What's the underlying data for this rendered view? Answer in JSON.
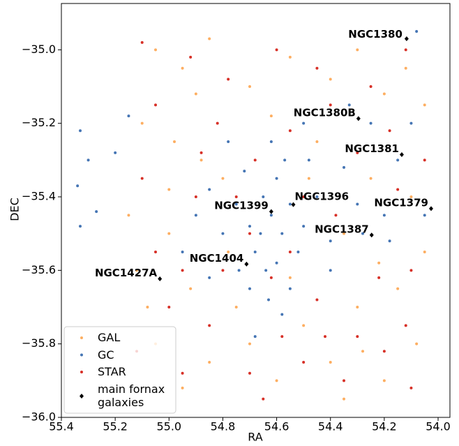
{
  "chart_data": {
    "type": "scatter",
    "xlabel": "RA",
    "ylabel": "DEC",
    "xlim": [
      55.4,
      53.956
    ],
    "ylim": [
      -36.0,
      -34.874
    ],
    "xticks": [
      55.4,
      55.2,
      {
        "value": 55,
        "label": "55.0"
      },
      54.8,
      54.6,
      54.4,
      54.2,
      {
        "value": 54,
        "label": "54.0"
      }
    ],
    "yticks": [
      {
        "value": -35,
        "label": "−35.0"
      },
      {
        "value": -35.2,
        "label": "−35.2"
      },
      {
        "value": -35.4,
        "label": "−35.4"
      },
      {
        "value": -35.6,
        "label": "−35.6"
      },
      {
        "value": -35.8,
        "label": "−35.8"
      },
      {
        "value": -36,
        "label": "−36.0"
      }
    ],
    "legend": "lower left",
    "series": [
      {
        "name": "GAL",
        "color": "#fdae61",
        "marker": "circle",
        "x": [
          55.05,
          54.95,
          54.85,
          54.7,
          54.55,
          54.4,
          54.3,
          54.2,
          54.05,
          55.1,
          54.98,
          54.88,
          54.45,
          54.25,
          54.1,
          55.15,
          55.0,
          54.8,
          54.35,
          54.05,
          55.12,
          54.92,
          54.75,
          54.5,
          54.3,
          54.15,
          55.05,
          54.85,
          54.6,
          54.4,
          54.2,
          54.08,
          54.95,
          54.7,
          54.55,
          54.22,
          55.0,
          54.9,
          54.62,
          54.48,
          54.12,
          54.78,
          54.35,
          55.08,
          54.28
        ],
        "y": [
          -35.0,
          -35.05,
          -34.97,
          -35.1,
          -35.02,
          -35.08,
          -35.0,
          -35.12,
          -35.15,
          -35.2,
          -35.25,
          -35.3,
          -35.25,
          -35.35,
          -35.4,
          -35.45,
          -35.5,
          -35.35,
          -35.5,
          -35.55,
          -35.6,
          -35.65,
          -35.7,
          -35.75,
          -35.7,
          -35.65,
          -35.8,
          -35.85,
          -35.9,
          -35.85,
          -35.9,
          -35.8,
          -35.92,
          -35.8,
          -35.62,
          -35.58,
          -35.38,
          -35.12,
          -35.18,
          -35.35,
          -35.05,
          -35.55,
          -35.95,
          -35.7,
          -35.82
        ]
      },
      {
        "name": "GC",
        "color": "#4575b4",
        "marker": "circle",
        "x": [
          55.33,
          55.3,
          55.34,
          55.27,
          55.33,
          55.2,
          55.15,
          54.62,
          54.65,
          54.58,
          54.7,
          54.55,
          54.6,
          54.68,
          54.52,
          54.75,
          54.64,
          54.57,
          54.72,
          54.5,
          54.66,
          54.6,
          54.8,
          54.45,
          54.62,
          54.7,
          54.55,
          54.58,
          54.85,
          54.4,
          54.63,
          54.74,
          54.48,
          54.9,
          54.35,
          54.3,
          54.28,
          54.2,
          54.15,
          54.1,
          54.08,
          54.25,
          54.33,
          54.4,
          54.95,
          54.78,
          54.18,
          54.05,
          54.5,
          54.68,
          54.85
        ],
        "y": [
          -35.22,
          -35.3,
          -35.37,
          -35.44,
          -35.48,
          -35.28,
          -35.18,
          -35.45,
          -35.4,
          -35.5,
          -35.48,
          -35.42,
          -35.35,
          -35.55,
          -35.55,
          -35.42,
          -35.6,
          -35.3,
          -35.33,
          -35.48,
          -35.5,
          -35.58,
          -35.5,
          -35.4,
          -35.25,
          -35.65,
          -35.65,
          -35.72,
          -35.38,
          -35.52,
          -35.68,
          -35.6,
          -35.3,
          -35.45,
          -35.32,
          -35.42,
          -35.5,
          -35.45,
          -35.3,
          -35.2,
          -34.95,
          -35.2,
          -35.15,
          -35.6,
          -35.55,
          -35.25,
          -35.52,
          -35.45,
          -35.2,
          -35.78,
          -35.62
        ]
      },
      {
        "name": "STAR",
        "color": "#d73027",
        "marker": "circle",
        "x": [
          55.1,
          54.92,
          54.78,
          54.6,
          54.45,
          54.25,
          54.12,
          55.05,
          54.82,
          54.55,
          54.3,
          54.15,
          55.1,
          54.9,
          54.7,
          54.55,
          54.38,
          54.22,
          54.1,
          55.05,
          54.8,
          54.62,
          54.45,
          54.3,
          54.12,
          55.0,
          54.85,
          54.7,
          54.5,
          54.35,
          54.1,
          54.95,
          54.65,
          54.42,
          54.2,
          54.88,
          54.68,
          54.5,
          54.58,
          54.75,
          55.12,
          54.18,
          54.4,
          54.95,
          54.05
        ],
        "y": [
          -34.98,
          -35.02,
          -35.08,
          -35.0,
          -35.05,
          -35.1,
          -35.0,
          -35.15,
          -35.2,
          -35.22,
          -35.28,
          -35.38,
          -35.35,
          -35.4,
          -35.5,
          -35.55,
          -35.45,
          -35.62,
          -35.6,
          -35.55,
          -35.6,
          -35.62,
          -35.68,
          -35.78,
          -35.75,
          -35.7,
          -35.75,
          -35.88,
          -35.85,
          -35.9,
          -35.92,
          -35.88,
          -35.95,
          -35.78,
          -35.82,
          -35.28,
          -35.3,
          -35.4,
          -35.78,
          -35.4,
          -35.82,
          -35.22,
          -35.15,
          -35.6,
          -35.3
        ]
      },
      {
        "name": "main fornax galaxies",
        "color": "#000000",
        "marker": "diamond",
        "x": [
          54.117,
          54.296,
          54.135,
          54.026,
          54.538,
          54.62,
          54.247,
          54.712,
          55.034
        ],
        "y": [
          -34.97,
          -35.187,
          -35.285,
          -35.432,
          -35.421,
          -35.44,
          -35.504,
          -35.583,
          -35.623
        ],
        "labels": [
          "NGC1380",
          "NGC1380B",
          "NGC1381",
          "NGC1379",
          "NGC1396",
          "NGC1399",
          "NGC1387",
          "NGC1404",
          "NGC1427A"
        ]
      }
    ]
  }
}
